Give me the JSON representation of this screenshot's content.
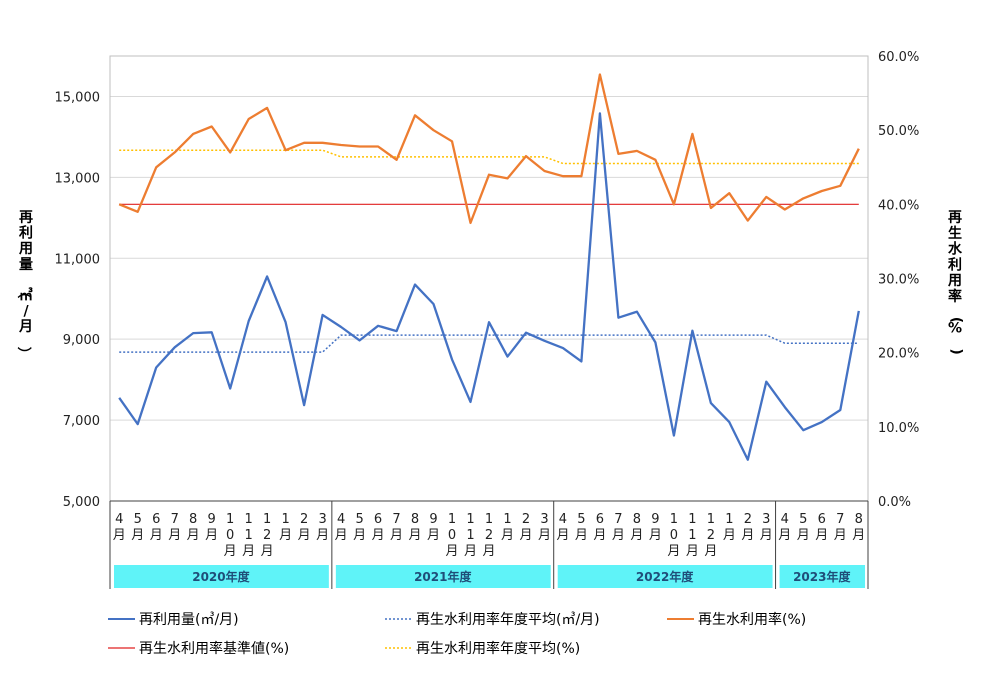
{
  "chart_data": {
    "type": "line",
    "categories": [
      "4月",
      "5月",
      "6月",
      "7月",
      "8月",
      "9月",
      "10月",
      "11月",
      "12月",
      "1月",
      "2月",
      "3月",
      "4月",
      "5月",
      "6月",
      "7月",
      "8月",
      "9月",
      "10月",
      "11月",
      "12月",
      "1月",
      "2月",
      "3月",
      "4月",
      "5月",
      "6月",
      "7月",
      "8月",
      "9月",
      "10月",
      "11月",
      "12月",
      "1月",
      "2月",
      "3月",
      "4月",
      "5月",
      "6月",
      "7月",
      "8月"
    ],
    "fiscal_years": [
      {
        "label": "2020年度",
        "months": 12
      },
      {
        "label": "2021年度",
        "months": 12
      },
      {
        "label": "2022年度",
        "months": 12
      },
      {
        "label": "2023年度",
        "months": 5
      }
    ],
    "ylabel": "再利用量（㎥/月）",
    "y2label": "再生水利用率(%)",
    "ylim": [
      5000,
      16000
    ],
    "yticks": [
      "5,000",
      "7,000",
      "9,000",
      "11,000",
      "13,000",
      "15,000"
    ],
    "ytick_values": [
      5000,
      7000,
      9000,
      11000,
      13000,
      15000
    ],
    "y2lim": [
      0,
      60
    ],
    "y2ticks": [
      "0.0%",
      "10.0%",
      "20.0%",
      "30.0%",
      "40.0%",
      "50.0%",
      "60.0%"
    ],
    "y2tick_values": [
      0,
      10,
      20,
      30,
      40,
      50,
      60
    ],
    "grid": true,
    "legend_position": "bottom",
    "series": [
      {
        "name": "再利用量(㎥/月)",
        "axis": "left",
        "color": "#4472c4",
        "style": "solid",
        "values": [
          7550,
          6900,
          8300,
          8800,
          9150,
          9170,
          7780,
          9450,
          10550,
          9420,
          7370,
          9600,
          9300,
          8970,
          9330,
          9200,
          10350,
          9870,
          8500,
          7450,
          9420,
          8570,
          9160,
          8960,
          8780,
          8450,
          14580,
          9530,
          9680,
          8920,
          6620,
          9210,
          7420,
          6950,
          6020,
          7950,
          7320,
          6750,
          6950,
          7250,
          9700
        ]
      },
      {
        "name": "再生水利用率年度平均(㎥/月)",
        "axis": "left",
        "color": "#4472c4",
        "style": "dotted",
        "values": [
          8680,
          8680,
          8680,
          8680,
          8680,
          8680,
          8680,
          8680,
          8680,
          8680,
          8680,
          8680,
          9100,
          9100,
          9100,
          9100,
          9100,
          9100,
          9100,
          9100,
          9100,
          9100,
          9100,
          9100,
          9100,
          9100,
          9100,
          9100,
          9100,
          9100,
          9100,
          9100,
          9100,
          9100,
          9100,
          9100,
          8900,
          8900,
          8900,
          8900,
          8900
        ]
      },
      {
        "name": "再生水利用率(%)",
        "axis": "right",
        "color": "#ed7d31",
        "style": "solid",
        "values": [
          40.0,
          39.0,
          45.0,
          47.0,
          49.5,
          50.5,
          47.0,
          51.5,
          53.0,
          47.3,
          48.3,
          48.3,
          48.0,
          47.8,
          47.8,
          46.0,
          52.0,
          50.0,
          48.5,
          37.5,
          44.0,
          43.5,
          46.5,
          44.5,
          43.8,
          43.8,
          57.5,
          46.8,
          47.2,
          46.0,
          40.0,
          49.5,
          39.5,
          41.5,
          37.8,
          41.0,
          39.3,
          40.8,
          41.8,
          42.5,
          47.5
        ]
      },
      {
        "name": "再生水利用率基準値(%)",
        "axis": "right",
        "color": "#e02020",
        "style": "solid",
        "values": [
          40,
          40,
          40,
          40,
          40,
          40,
          40,
          40,
          40,
          40,
          40,
          40,
          40,
          40,
          40,
          40,
          40,
          40,
          40,
          40,
          40,
          40,
          40,
          40,
          40,
          40,
          40,
          40,
          40,
          40,
          40,
          40,
          40,
          40,
          40,
          40,
          40,
          40,
          40,
          40,
          40
        ]
      },
      {
        "name": "再生水利用率年度平均(%)",
        "axis": "right",
        "color": "#ffc000",
        "style": "dotted",
        "values": [
          47.3,
          47.3,
          47.3,
          47.3,
          47.3,
          47.3,
          47.3,
          47.3,
          47.3,
          47.3,
          47.3,
          47.3,
          46.4,
          46.4,
          46.4,
          46.4,
          46.4,
          46.4,
          46.4,
          46.4,
          46.4,
          46.4,
          46.4,
          46.4,
          45.5,
          45.5,
          45.5,
          45.5,
          45.5,
          45.5,
          45.5,
          45.5,
          45.5,
          45.5,
          45.5,
          45.5,
          45.5,
          45.5,
          45.5,
          45.5,
          45.5
        ]
      }
    ],
    "legend": [
      {
        "label": "再利用量(㎥/月)",
        "color": "#4472c4",
        "style": "solid"
      },
      {
        "label": "再生水利用率年度平均(㎥/月)",
        "color": "#4472c4",
        "style": "dotted"
      },
      {
        "label": "再生水利用率(%)",
        "color": "#ed7d31",
        "style": "solid"
      },
      {
        "label": "再生水利用率基準値(%)",
        "color": "#e02020",
        "style": "solid"
      },
      {
        "label": "再生水利用率年度平均(%)",
        "color": "#ffc000",
        "style": "dotted"
      }
    ],
    "fy_band_color": "#5ff3f8"
  }
}
